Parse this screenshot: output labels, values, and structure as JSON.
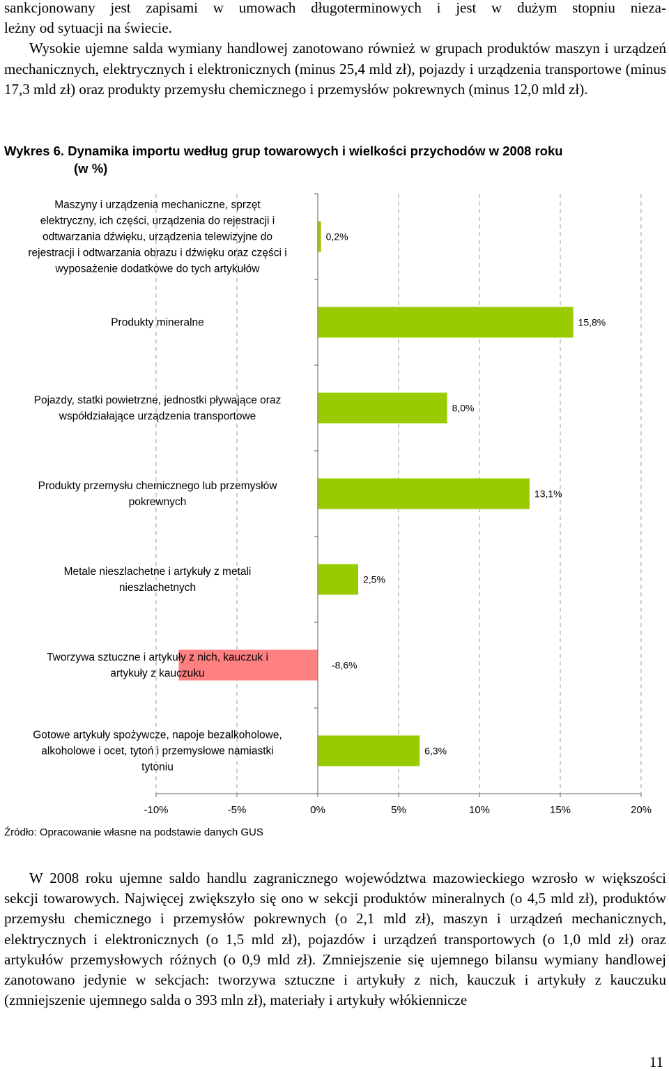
{
  "text": {
    "para1_line1": "sankcjonowany jest zapisami w umowach długoterminowych i jest w dużym stopniu nieza-",
    "para1_line2": "leżny od sytuacji na świecie.",
    "para2": "Wysokie ujemne salda wymiany handlowej zanotowano również w grupach produktów maszyn i urządzeń mechanicznych, elektrycznych i elektronicznych (minus 25,4 mld zł), pojazdy i urządzenia transportowe (minus 17,3 mld zł) oraz produkty przemysłu chemicznego i przemysłów pokrewnych (minus 12,0 mld zł).",
    "caption_number": "Wykres 6.",
    "caption_title": "Dynamika importu według grup towarowych i wielkości przychodów w 2008 roku",
    "caption_unit": "(w %)",
    "source": "Źródło: Opracowanie własne na podstawie danych GUS",
    "para3": "W 2008 roku ujemne saldo handlu zagranicznego województwa mazowieckiego wzrosło w większości sekcji towarowych. Najwięcej zwiększyło się ono w sekcji produktów mineralnych (o 4,5 mld zł), produktów przemysłu chemicznego i przemysłów pokrewnych (o 2,1 mld zł), maszyn i urządzeń mechanicznych, elektrycznych i elektronicznych (o 1,5 mld zł), pojazdów i urządzeń transportowych (o 1,0 mld zł) oraz artykułów przemysłowych różnych (o 0,9 mld zł). Zmniejszenie się ujemnego bilansu wymiany handlowej zanotowano jedynie w sekcjach: tworzywa sztuczne i artykuły z nich, kauczuk i artykuły z kauczuku (zmniejszenie ujemnego salda o 393 mln zł), materiały i artykuły włókiennicze",
    "page_number": "11"
  },
  "chart_data": {
    "type": "bar",
    "orientation": "horizontal",
    "categories": [
      [
        "Maszyny i urządzenia mechaniczne, sprzęt",
        "elektryczny, ich części, urządzenia do rejestracji i",
        "odtwarzania dźwięku, urządzenia telewizyjne do",
        "rejestracji i odtwarzania obrazu i dźwięku oraz części i",
        "wyposażenie dodatkowe do tych artykułów"
      ],
      [
        "Produkty mineralne"
      ],
      [
        "Pojazdy, statki powietrzne, jednostki pływające oraz",
        "współdziałające urządzenia transportowe"
      ],
      [
        "Produkty przemysłu chemicznego lub przemysłów",
        "pokrewnych"
      ],
      [
        "Metale nieszlachetne i artykuły z metali",
        "nieszlachetnych"
      ],
      [
        "Tworzywa sztuczne i artykuły z nich, kauczuk i",
        "artykuły z kauczuku"
      ],
      [
        "Gotowe artykuły spożywcze, napoje bezalkoholowe,",
        "alkoholowe i ocet, tytoń i przemysłowe namiastki",
        "tytoniu"
      ]
    ],
    "values": [
      0.2,
      15.8,
      8.0,
      13.1,
      2.5,
      -8.6,
      6.3
    ],
    "data_labels": [
      "0,2%",
      "15,8%",
      "8,0%",
      "13,1%",
      "2,5%",
      "-8,6%",
      "6,3%"
    ],
    "x_ticks": [
      -10,
      -5,
      0,
      5,
      10,
      15,
      20
    ],
    "x_tick_labels": [
      "-10%",
      "-5%",
      "0%",
      "5%",
      "10%",
      "15%",
      "20%"
    ],
    "xlim": [
      -10,
      20
    ],
    "grid": "vertical dashed",
    "colors": {
      "positive": "#99cc00",
      "negative": "#ff8080",
      "grid": "#b3b3b3",
      "axis": "#808080"
    }
  }
}
